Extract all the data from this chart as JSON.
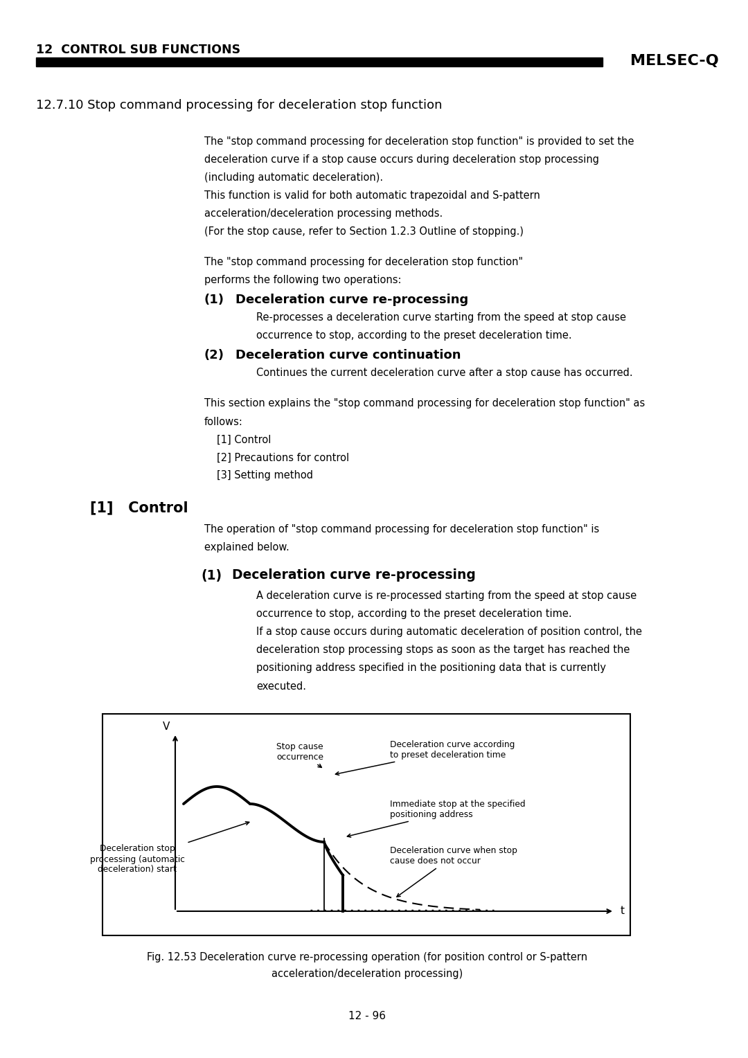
{
  "page_bg": "#ffffff",
  "header_title": "12  CONTROL SUB FUNCTIONS",
  "header_brand": "MELSEC-Q",
  "section_title": "12.7.10 Stop command processing for deceleration stop function",
  "body1": [
    "The \"stop command processing for deceleration stop function\" is provided to set the",
    "deceleration curve if a stop cause occurs during deceleration stop processing",
    "(including automatic deceleration).",
    "This function is valid for both automatic trapezoidal and S-pattern",
    "acceleration/deceleration processing methods.",
    "(For the stop cause, refer to Section 1.2.3 Outline of stopping.)"
  ],
  "body2": [
    "The \"stop command processing for deceleration stop function\"",
    "performs the following two operations:"
  ],
  "item1_num": "(1)",
  "item1_title": "Deceleration curve re-processing",
  "item1_body": [
    "Re-processes a deceleration curve starting from the speed at stop cause",
    "occurrence to stop, according to the preset deceleration time."
  ],
  "item2_num": "(2)",
  "item2_title": "Deceleration curve continuation",
  "item2_body": "Continues the current deceleration curve after a stop cause has occurred.",
  "body3_line1": "This section explains the \"stop command processing for deceleration stop function\" as",
  "body3_line2": "follows:",
  "body3_items": [
    "[1] Control",
    "[2] Precautions for control",
    "[3] Setting method"
  ],
  "sec2_title": "[1]   Control",
  "sec2_body": [
    "The operation of \"stop command processing for deceleration stop function\" is",
    "explained below."
  ],
  "sub1_num": "(1)",
  "sub1_title": "Deceleration curve re-processing",
  "sub1_body": [
    "A deceleration curve is re-processed starting from the speed at stop cause",
    "occurrence to stop, according to the preset deceleration time.",
    "If a stop cause occurs during automatic deceleration of position control, the",
    "deceleration stop processing stops as soon as the target has reached the",
    "positioning address specified in the positioning data that is currently",
    "executed."
  ],
  "ann_stop_cause": "Stop cause\noccurrence",
  "ann_decel_preset": "Deceleration curve according\nto preset deceleration time",
  "ann_imm_stop": "Immediate stop at the specified\npositioning address",
  "ann_decel_start": "Deceleration stop\nprocessing (automatic\ndeceleration) start",
  "ann_no_stop": "Deceleration curve when stop\ncause does not occur",
  "v_label": "V",
  "t_label": "t",
  "fig_cap1": "Fig. 12.53 Deceleration curve re-processing operation (for position control or S-pattern",
  "fig_cap2": "acceleration/deceleration processing)",
  "page_number": "12 - 96"
}
